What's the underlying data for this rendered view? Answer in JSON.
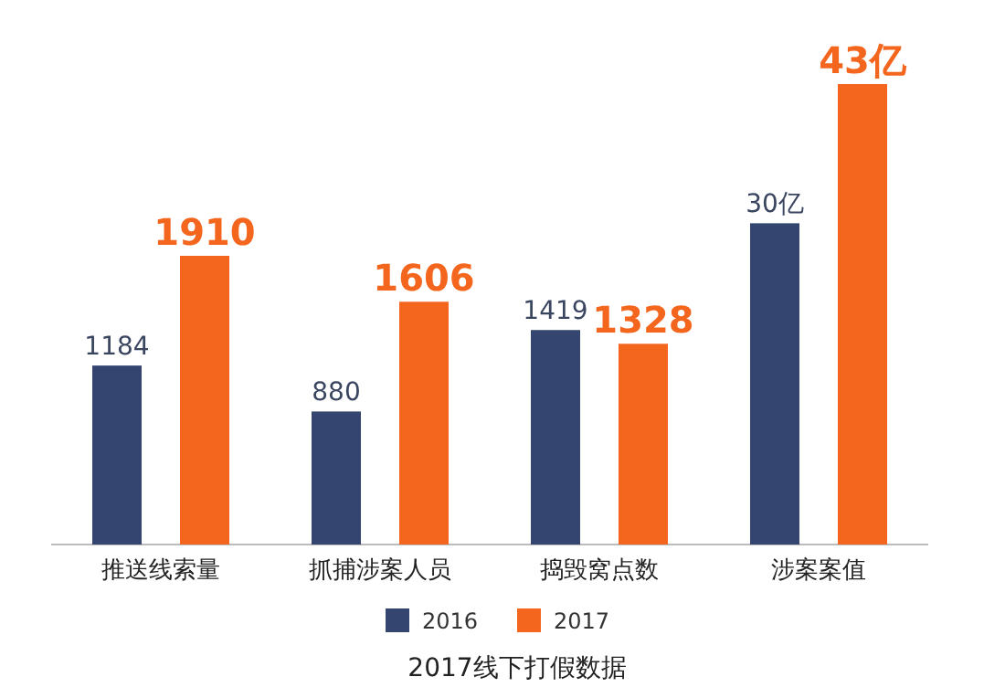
{
  "chart_data": [
    {
      "type": "bar",
      "title": "2017线下打假数据",
      "categories": [
        "推送线索量",
        "抓捕涉案人员",
        "捣毁窝点数"
      ],
      "series": [
        {
          "name": "2016",
          "color": "#34466f",
          "values": [
            1184,
            880,
            1419
          ]
        },
        {
          "name": "2017",
          "color": "#f4661e",
          "values": [
            1910,
            1606,
            1328
          ]
        }
      ],
      "data_labels": true,
      "legend": "bottom"
    },
    {
      "type": "bar",
      "categories": [
        "涉案案值"
      ],
      "series": [
        {
          "color": "#34466f",
          "values": [
            30
          ],
          "value_labels": [
            "30亿"
          ]
        },
        {
          "color": "#f4661e",
          "values": [
            43
          ],
          "value_labels": [
            "43亿"
          ]
        }
      ]
    }
  ]
}
